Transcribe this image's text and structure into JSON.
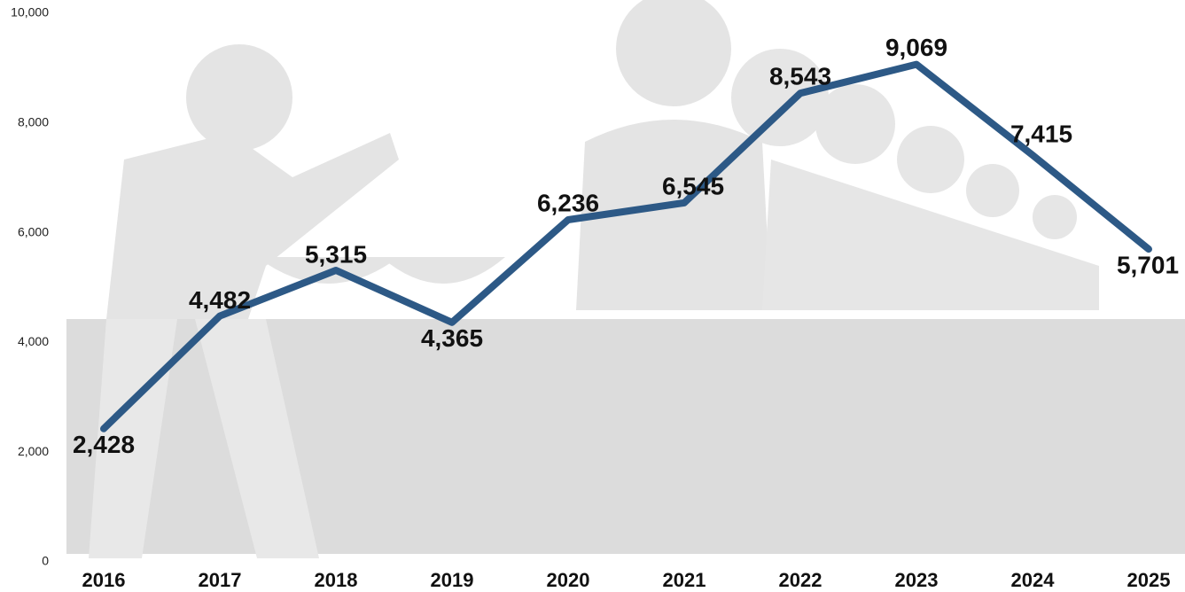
{
  "chart_data": {
    "type": "line",
    "categories": [
      "2016",
      "2017",
      "2018",
      "2019",
      "2020",
      "2021",
      "2022",
      "2023",
      "2024",
      "2025"
    ],
    "values": [
      2428,
      4482,
      5315,
      4365,
      6236,
      6545,
      8543,
      9069,
      7415,
      5701
    ],
    "value_labels": [
      "2,428",
      "4,482",
      "5,315",
      "4,365",
      "6,236",
      "6,545",
      "8,543",
      "9,069",
      "7,415",
      "5,701"
    ],
    "color": "#2d5986",
    "ylim": [
      0,
      10000
    ],
    "yticks": [
      0,
      {
        "value": 2000,
        "label": "2,000"
      },
      {
        "value": 4000,
        "label": "4,000"
      },
      {
        "value": 6000,
        "label": "6,000"
      },
      {
        "value": 8000,
        "label": "8,000"
      },
      {
        "value": 10000,
        "label": "10,000"
      }
    ]
  }
}
